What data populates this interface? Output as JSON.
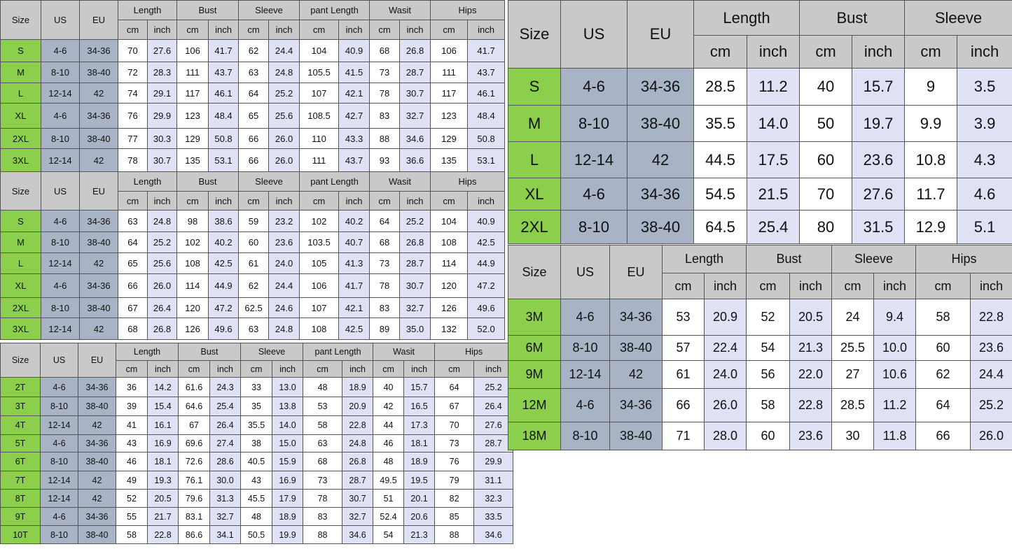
{
  "colors": {
    "header": "#c9c9c9",
    "size_column": "#8bcf4c",
    "us_eu_columns": "#a8b3c6",
    "cm_columns": "#ffffff",
    "inch_columns": "#dfe1f4"
  },
  "tables": [
    {
      "id": "adult-table-1",
      "fixed_headers": [
        "Size",
        "US",
        "EU"
      ],
      "groups": [
        "Length",
        "Bust",
        "Sleeve",
        "pant Length",
        "Wasit",
        "Hips"
      ],
      "units": [
        "cm",
        "inch"
      ],
      "rows": [
        [
          "S",
          "4-6",
          "34-36",
          "70",
          "27.6",
          "106",
          "41.7",
          "62",
          "24.4",
          "104",
          "40.9",
          "68",
          "26.8",
          "106",
          "41.7"
        ],
        [
          "M",
          "8-10",
          "38-40",
          "72",
          "28.3",
          "111",
          "43.7",
          "63",
          "24.8",
          "105.5",
          "41.5",
          "73",
          "28.7",
          "111",
          "43.7"
        ],
        [
          "L",
          "12-14",
          "42",
          "74",
          "29.1",
          "117",
          "46.1",
          "64",
          "25.2",
          "107",
          "42.1",
          "78",
          "30.7",
          "117",
          "46.1"
        ],
        [
          "XL",
          "4-6",
          "34-36",
          "76",
          "29.9",
          "123",
          "48.4",
          "65",
          "25.6",
          "108.5",
          "42.7",
          "83",
          "32.7",
          "123",
          "48.4"
        ],
        [
          "2XL",
          "8-10",
          "38-40",
          "77",
          "30.3",
          "129",
          "50.8",
          "66",
          "26.0",
          "110",
          "43.3",
          "88",
          "34.6",
          "129",
          "50.8"
        ],
        [
          "3XL",
          "12-14",
          "42",
          "78",
          "30.7",
          "135",
          "53.1",
          "66",
          "26.0",
          "111",
          "43.7",
          "93",
          "36.6",
          "135",
          "53.1"
        ]
      ]
    },
    {
      "id": "adult-table-2",
      "fixed_headers": [
        "Size",
        "US",
        "EU"
      ],
      "groups": [
        "Length",
        "Bust",
        "Sleeve",
        "pant Length",
        "Wasit",
        "Hips"
      ],
      "units": [
        "cm",
        "inch"
      ],
      "rows": [
        [
          "S",
          "4-6",
          "34-36",
          "63",
          "24.8",
          "98",
          "38.6",
          "59",
          "23.2",
          "102",
          "40.2",
          "64",
          "25.2",
          "104",
          "40.9"
        ],
        [
          "M",
          "8-10",
          "38-40",
          "64",
          "25.2",
          "102",
          "40.2",
          "60",
          "23.6",
          "103.5",
          "40.7",
          "68",
          "26.8",
          "108",
          "42.5"
        ],
        [
          "L",
          "12-14",
          "42",
          "65",
          "25.6",
          "108",
          "42.5",
          "61",
          "24.0",
          "105",
          "41.3",
          "73",
          "28.7",
          "114",
          "44.9"
        ],
        [
          "XL",
          "4-6",
          "34-36",
          "66",
          "26.0",
          "114",
          "44.9",
          "62",
          "24.4",
          "106",
          "41.7",
          "78",
          "30.7",
          "120",
          "47.2"
        ],
        [
          "2XL",
          "8-10",
          "38-40",
          "67",
          "26.4",
          "120",
          "47.2",
          "62.5",
          "24.6",
          "107",
          "42.1",
          "83",
          "32.7",
          "126",
          "49.6"
        ],
        [
          "3XL",
          "12-14",
          "42",
          "68",
          "26.8",
          "126",
          "49.6",
          "63",
          "24.8",
          "108",
          "42.5",
          "89",
          "35.0",
          "132",
          "52.0"
        ]
      ]
    },
    {
      "id": "kids-table",
      "fixed_headers": [
        "Size",
        "US",
        "EU"
      ],
      "groups": [
        "Length",
        "Bust",
        "Sleeve",
        "pant Length",
        "Wasit",
        "Hips"
      ],
      "units": [
        "cm",
        "inch"
      ],
      "rows": [
        [
          "2T",
          "4-6",
          "34-36",
          "36",
          "14.2",
          "61.6",
          "24.3",
          "33",
          "13.0",
          "48",
          "18.9",
          "40",
          "15.7",
          "64",
          "25.2"
        ],
        [
          "3T",
          "8-10",
          "38-40",
          "39",
          "15.4",
          "64.6",
          "25.4",
          "35",
          "13.8",
          "53",
          "20.9",
          "42",
          "16.5",
          "67",
          "26.4"
        ],
        [
          "4T",
          "12-14",
          "42",
          "41",
          "16.1",
          "67",
          "26.4",
          "35.5",
          "14.0",
          "58",
          "22.8",
          "44",
          "17.3",
          "70",
          "27.6"
        ],
        [
          "5T",
          "4-6",
          "34-36",
          "43",
          "16.9",
          "69.6",
          "27.4",
          "38",
          "15.0",
          "63",
          "24.8",
          "46",
          "18.1",
          "73",
          "28.7"
        ],
        [
          "6T",
          "8-10",
          "38-40",
          "46",
          "18.1",
          "72.6",
          "28.6",
          "40.5",
          "15.9",
          "68",
          "26.8",
          "48",
          "18.9",
          "76",
          "29.9"
        ],
        [
          "7T",
          "12-14",
          "42",
          "49",
          "19.3",
          "76.1",
          "30.0",
          "43",
          "16.9",
          "73",
          "28.7",
          "49.5",
          "19.5",
          "79",
          "31.1"
        ],
        [
          "8T",
          "12-14",
          "42",
          "52",
          "20.5",
          "79.6",
          "31.3",
          "45.5",
          "17.9",
          "78",
          "30.7",
          "51",
          "20.1",
          "82",
          "32.3"
        ],
        [
          "9T",
          "4-6",
          "34-36",
          "55",
          "21.7",
          "83.1",
          "32.7",
          "48",
          "18.9",
          "83",
          "32.7",
          "52.4",
          "20.6",
          "85",
          "33.5"
        ],
        [
          "10T",
          "8-10",
          "38-40",
          "58",
          "22.8",
          "86.6",
          "34.1",
          "50.5",
          "19.9",
          "88",
          "34.6",
          "54",
          "21.3",
          "88",
          "34.6"
        ]
      ]
    },
    {
      "id": "top-table",
      "fixed_headers": [
        "Size",
        "US",
        "EU"
      ],
      "groups": [
        "Length",
        "Bust",
        "Sleeve"
      ],
      "units": [
        "cm",
        "inch"
      ],
      "rows": [
        [
          "S",
          "4-6",
          "34-36",
          "28.5",
          "11.2",
          "40",
          "15.7",
          "9",
          "3.5"
        ],
        [
          "M",
          "8-10",
          "38-40",
          "35.5",
          "14.0",
          "50",
          "19.7",
          "9.9",
          "3.9"
        ],
        [
          "L",
          "12-14",
          "42",
          "44.5",
          "17.5",
          "60",
          "23.6",
          "10.8",
          "4.3"
        ],
        [
          "XL",
          "4-6",
          "34-36",
          "54.5",
          "21.5",
          "70",
          "27.6",
          "11.7",
          "4.6"
        ],
        [
          "2XL",
          "8-10",
          "38-40",
          "64.5",
          "25.4",
          "80",
          "31.5",
          "12.9",
          "5.1"
        ]
      ]
    },
    {
      "id": "baby-table",
      "fixed_headers": [
        "Size",
        "US",
        "EU"
      ],
      "groups": [
        "Length",
        "Bust",
        "Sleeve",
        "Hips"
      ],
      "units": [
        "cm",
        "inch"
      ],
      "rows": [
        [
          "3M",
          "4-6",
          "34-36",
          "53",
          "20.9",
          "52",
          "20.5",
          "24",
          "9.4",
          "58",
          "22.8"
        ],
        [
          "6M",
          "8-10",
          "38-40",
          "57",
          "22.4",
          "54",
          "21.3",
          "25.5",
          "10.0",
          "60",
          "23.6"
        ],
        [
          "9M",
          "12-14",
          "42",
          "61",
          "24.0",
          "56",
          "22.0",
          "27",
          "10.6",
          "62",
          "24.4"
        ],
        [
          "12M",
          "4-6",
          "34-36",
          "66",
          "26.0",
          "58",
          "22.8",
          "28.5",
          "11.2",
          "64",
          "25.2"
        ],
        [
          "18M",
          "8-10",
          "38-40",
          "71",
          "28.0",
          "60",
          "23.6",
          "30",
          "11.8",
          "66",
          "26.0"
        ]
      ]
    }
  ]
}
